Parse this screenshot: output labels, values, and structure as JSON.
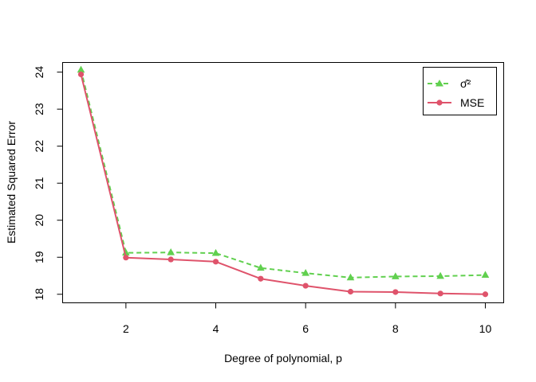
{
  "chart_data": {
    "type": "line",
    "xlabel": "Degree of polynomial, p",
    "ylabel": "Estimated Squared Error",
    "xlim": [
      0.6,
      10.4
    ],
    "ylim": [
      17.78,
      24.25
    ],
    "x_ticks": [
      2,
      4,
      6,
      8,
      10
    ],
    "y_ticks": [
      18,
      19,
      20,
      21,
      22,
      23,
      24
    ],
    "grid": false,
    "legend_position": "top-right",
    "x": [
      1,
      2,
      3,
      4,
      5,
      6,
      7,
      8,
      9,
      10
    ],
    "series": [
      {
        "name": "σ̂²",
        "color": "#61d04f",
        "line_style": "dashed",
        "marker": "triangle",
        "values": [
          24.06,
          19.12,
          19.13,
          19.11,
          18.71,
          18.57,
          18.45,
          18.48,
          18.49,
          18.52
        ]
      },
      {
        "name": "MSE",
        "color": "#df536b",
        "line_style": "solid",
        "marker": "circle",
        "values": [
          23.94,
          18.99,
          18.94,
          18.88,
          18.42,
          18.23,
          18.07,
          18.06,
          18.02,
          18.0
        ]
      }
    ]
  }
}
